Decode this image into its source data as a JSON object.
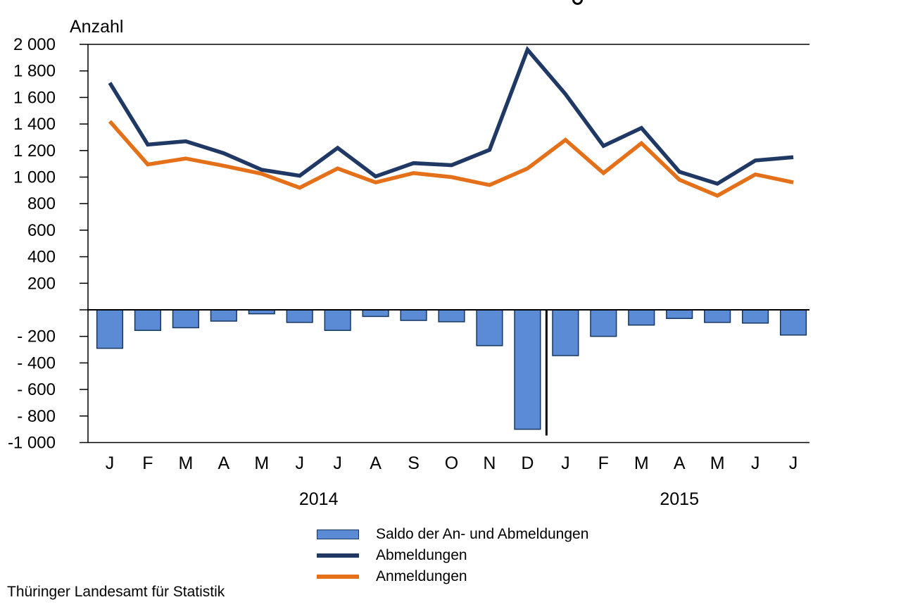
{
  "header": {
    "y_axis_unit_label": "Anzahl"
  },
  "footer": {
    "source": "Thüringer Landesamt für Statistik"
  },
  "legend": {
    "items": [
      {
        "label": "Saldo der An- und Abmeldungen",
        "swatch": "bar",
        "color": "#5B8BD5",
        "border": "#17375E"
      },
      {
        "label": "Abmeldungen",
        "swatch": "line",
        "color": "#1F3864",
        "border": "#1F3864"
      },
      {
        "label": "Anmeldungen",
        "swatch": "line",
        "color": "#E4711A",
        "border": "#E4711A"
      }
    ]
  },
  "chart_data": {
    "type": "combo bar+line",
    "title": "",
    "y_axis_title": "Anzahl",
    "ylim": [
      -1000,
      2000
    ],
    "ytick_step": 200,
    "y_tick_labels": [
      "2 000",
      "1 800",
      "1 600",
      "1 400",
      "1 200",
      "1 000",
      "800",
      "600",
      "400",
      "200",
      "",
      "- 200",
      "- 400",
      "- 600",
      "- 800",
      "-1 000"
    ],
    "months": [
      "J",
      "F",
      "M",
      "A",
      "M",
      "J",
      "J",
      "A",
      "S",
      "O",
      "N",
      "D",
      "J",
      "F",
      "M",
      "A",
      "M",
      "J",
      "J"
    ],
    "year_groups": [
      {
        "label": "2014",
        "start_index": 0,
        "end_index": 11
      },
      {
        "label": "2015",
        "start_index": 12,
        "end_index": 18
      }
    ],
    "grid": "off",
    "legend_position": "bottom",
    "series": [
      {
        "name": "Saldo der An- und Abmeldungen",
        "type": "bar",
        "color": "#5B8BD5",
        "border_color": "#17375E",
        "values": [
          -290,
          -155,
          -135,
          -85,
          -30,
          -95,
          -155,
          -50,
          -80,
          -90,
          -270,
          -900,
          -345,
          -200,
          -115,
          -65,
          -95,
          -100,
          -190
        ]
      },
      {
        "name": "Abmeldungen",
        "type": "line",
        "color": "#1F3864",
        "values": [
          1710,
          1245,
          1270,
          1180,
          1055,
          1010,
          1220,
          1005,
          1105,
          1090,
          1205,
          1960,
          1625,
          1235,
          1370,
          1040,
          950,
          1125,
          1150
        ]
      },
      {
        "name": "Anmeldungen",
        "type": "line",
        "color": "#E4711A",
        "values": [
          1420,
          1095,
          1140,
          1085,
          1025,
          920,
          1065,
          960,
          1030,
          1000,
          940,
          1065,
          1280,
          1030,
          1255,
          980,
          860,
          1020,
          960
        ]
      }
    ],
    "annotations": {
      "year_separator_between_indices": [
        11,
        12
      ]
    }
  }
}
